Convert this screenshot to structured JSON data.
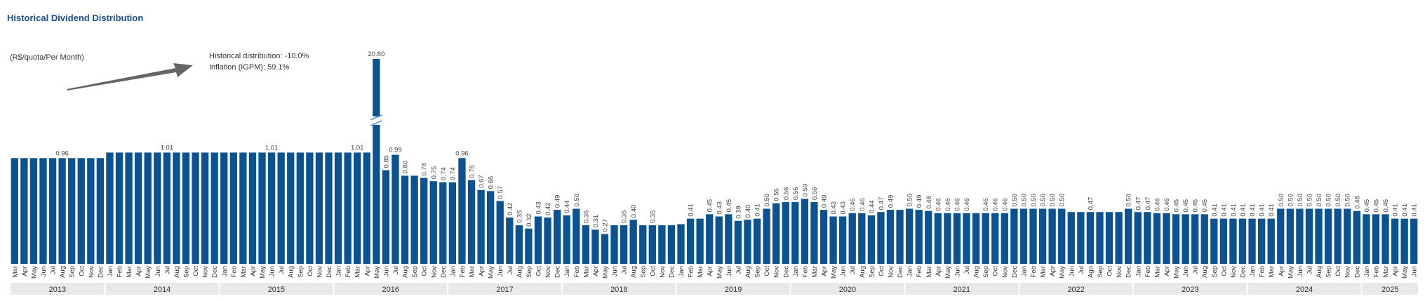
{
  "title": "Historical Dividend Distribution",
  "units": "(R$/quota/Per Month)",
  "notes": {
    "distribution": "Historical distribution: -10.0%",
    "inflation": "Inflation (IGPM): 59.1%"
  },
  "colors": {
    "bar": "#0a5291",
    "title": "#1a4f8a",
    "arrow": "#666666"
  },
  "chart_data": {
    "type": "bar",
    "title": "Historical Dividend Distribution",
    "ylabel": "(R$/quota/Per Month)",
    "axis_break": "between 1.0 and 20.80",
    "years": [
      {
        "label": "2013",
        "months": [
          "Mar",
          "Apr",
          "May",
          "Jun",
          "Jul",
          "Aug",
          "Sep",
          "Oct",
          "Nov",
          "Dec"
        ],
        "values": [
          0.96,
          0.96,
          0.96,
          0.96,
          0.96,
          0.96,
          0.96,
          0.96,
          0.96,
          0.96
        ],
        "labels": [
          "",
          "",
          "",
          "",
          "",
          "0.96",
          "",
          "",
          "",
          ""
        ]
      },
      {
        "label": "2014",
        "months": [
          "Jan",
          "Feb",
          "Mar",
          "Apr",
          "May",
          "Jun",
          "Jul",
          "Aug",
          "Sep",
          "Oct",
          "Nov",
          "Dec"
        ],
        "values": [
          1.01,
          1.01,
          1.01,
          1.01,
          1.01,
          1.01,
          1.01,
          1.01,
          1.01,
          1.01,
          1.01,
          1.01
        ],
        "labels": [
          "",
          "",
          "",
          "",
          "",
          "",
          "1.01",
          "",
          "",
          "",
          "",
          ""
        ]
      },
      {
        "label": "2015",
        "months": [
          "Jan",
          "Feb",
          "Mar",
          "Apr",
          "May",
          "Jun",
          "Jul",
          "Aug",
          "Sep",
          "Oct",
          "Nov",
          "Dec"
        ],
        "values": [
          1.01,
          1.01,
          1.01,
          1.01,
          1.01,
          1.01,
          1.01,
          1.01,
          1.01,
          1.01,
          1.01,
          1.01
        ],
        "labels": [
          "",
          "",
          "",
          "",
          "",
          "1.01",
          "",
          "",
          "",
          "",
          "",
          ""
        ]
      },
      {
        "label": "2016",
        "months": [
          "Jan",
          "Feb",
          "Mar",
          "Apr",
          "May",
          "Jun",
          "Jul",
          "Aug",
          "Sep",
          "Oct",
          "Nov",
          "Dec"
        ],
        "values": [
          1.01,
          1.01,
          1.01,
          1.01,
          20.8,
          0.85,
          0.99,
          0.8,
          0.8,
          0.78,
          0.75,
          0.74
        ],
        "labels": [
          "",
          "",
          "1.01",
          "",
          "20.80",
          "0.85",
          "0.99",
          "0.80",
          "",
          "0.78",
          "0.75",
          "0.74"
        ]
      },
      {
        "label": "2017",
        "months": [
          "Jan",
          "Feb",
          "Mar",
          "Apr",
          "May",
          "Jun",
          "Jul",
          "Aug",
          "Sep",
          "Oct",
          "Nov",
          "Dec"
        ],
        "values": [
          0.74,
          0.96,
          0.76,
          0.67,
          0.66,
          0.57,
          0.42,
          0.35,
          0.32,
          0.43,
          0.42,
          0.49
        ],
        "labels": [
          "0.74",
          "0.96",
          "0.76",
          "0.67",
          "0.66",
          "0.57",
          "0.42",
          "0.35",
          "0.32",
          "0.43",
          "0.42",
          "0.49"
        ]
      },
      {
        "label": "2018",
        "months": [
          "Jan",
          "Feb",
          "Mar",
          "Apr",
          "May",
          "Jun",
          "Jul",
          "Aug",
          "Sep",
          "Oct",
          "Nov",
          "Dec"
        ],
        "values": [
          0.44,
          0.5,
          0.35,
          0.31,
          0.27,
          0.35,
          0.35,
          0.4,
          0.35,
          0.35,
          0.35,
          0.35
        ],
        "labels": [
          "0.44",
          "0.50",
          "0.35",
          "0.31",
          "0.27",
          "",
          "0.35",
          "0.40",
          "",
          "0.35",
          "",
          ""
        ]
      },
      {
        "label": "2019",
        "months": [
          "Jan",
          "Feb",
          "Mar",
          "Apr",
          "May",
          "Jun",
          "Jul",
          "Aug",
          "Sep",
          "Oct",
          "Nov",
          "Dec"
        ],
        "values": [
          0.36,
          0.41,
          0.41,
          0.45,
          0.43,
          0.45,
          0.39,
          0.4,
          0.41,
          0.5,
          0.55,
          0.56
        ],
        "labels": [
          "",
          "0.41",
          "",
          "0.45",
          "0.43",
          "0.45",
          "0.39",
          "0.40",
          "0.41",
          "0.50",
          "0.55",
          "0.56"
        ]
      },
      {
        "label": "2020",
        "months": [
          "Jan",
          "Feb",
          "Mar",
          "Apr",
          "May",
          "Jun",
          "Jul",
          "Aug",
          "Sep",
          "Oct",
          "Nov",
          "Dec"
        ],
        "values": [
          0.56,
          0.59,
          0.56,
          0.49,
          0.43,
          0.43,
          0.46,
          0.46,
          0.44,
          0.47,
          0.49,
          0.49
        ],
        "labels": [
          "0.56",
          "0.59",
          "0.56",
          "0.49",
          "0.43",
          "0.43",
          "0.46",
          "0.46",
          "0.44",
          "0.47",
          "0.49",
          ""
        ]
      },
      {
        "label": "2021",
        "months": [
          "Jan",
          "Feb",
          "Mar",
          "Apr",
          "May",
          "Jun",
          "Jul",
          "Aug",
          "Sep",
          "Oct",
          "Nov",
          "Dec"
        ],
        "values": [
          0.5,
          0.49,
          0.48,
          0.46,
          0.46,
          0.46,
          0.46,
          0.46,
          0.46,
          0.46,
          0.46,
          0.5
        ],
        "labels": [
          "0.50",
          "0.49",
          "0.48",
          "0.46",
          "0.46",
          "0.46",
          "0.46",
          "",
          "0.46",
          "0.46",
          "0.46",
          "0.50"
        ]
      },
      {
        "label": "2022",
        "months": [
          "Jan",
          "Feb",
          "Mar",
          "Apr",
          "May",
          "Jun",
          "Jul",
          "Ago",
          "Sep",
          "Oct",
          "Nov",
          "Dec"
        ],
        "values": [
          0.5,
          0.5,
          0.5,
          0.5,
          0.5,
          0.47,
          0.47,
          0.47,
          0.47,
          0.47,
          0.47,
          0.5
        ],
        "labels": [
          "0.50",
          "0.50",
          "0.50",
          "0.50",
          "0.50",
          "",
          "",
          "0.47",
          "",
          "",
          "",
          "0.50"
        ]
      },
      {
        "label": "2023",
        "months": [
          "Jan",
          "Feb",
          "Mar",
          "Apr",
          "May",
          "Jun",
          "Jul",
          "Aug",
          "Sep",
          "Oct",
          "Nov",
          "Dec"
        ],
        "values": [
          0.47,
          0.47,
          0.46,
          0.46,
          0.45,
          0.45,
          0.45,
          0.45,
          0.41,
          0.41,
          0.41,
          0.41
        ],
        "labels": [
          "0.47",
          "0.47",
          "0.46",
          "0.46",
          "0.45",
          "0.45",
          "0.45",
          "0.45",
          "0.41",
          "0.41",
          "0.41",
          "0.41"
        ]
      },
      {
        "label": "2024",
        "months": [
          "Jan",
          "Feb",
          "Mar",
          "Apr",
          "May",
          "Jun",
          "Jul",
          "Aug",
          "Sep",
          "Oct",
          "Nov",
          "Dec"
        ],
        "values": [
          0.41,
          0.41,
          0.41,
          0.5,
          0.5,
          0.5,
          0.5,
          0.5,
          0.5,
          0.5,
          0.5,
          0.48
        ],
        "labels": [
          "0.41",
          "0.41",
          "0.41",
          "0.50",
          "0.50",
          "0.50",
          "0.50",
          "0.50",
          "0.50",
          "0.50",
          "0.50",
          "0.48"
        ]
      },
      {
        "label": "2025",
        "months": [
          "Jan",
          "Feb",
          "Mar",
          "Apr",
          "May",
          "Jun"
        ],
        "values": [
          0.45,
          0.45,
          0.45,
          0.41,
          0.41,
          0.41
        ],
        "labels": [
          "0.45",
          "0.45",
          "0.45",
          "0.41",
          "0.41",
          "0.41"
        ]
      }
    ]
  }
}
